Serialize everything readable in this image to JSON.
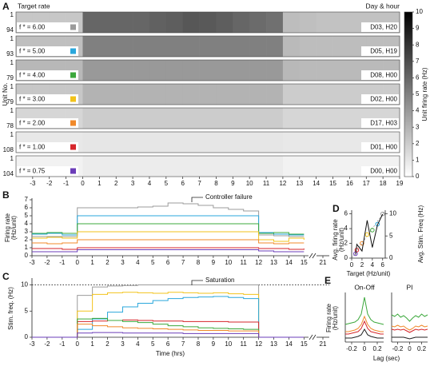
{
  "chart_data": [
    {
      "type": "heatmap",
      "panel": "A",
      "row_header": "Target rate",
      "day_header": "Day & hour",
      "ylabel": "Unit No.",
      "xlim": [
        -4,
        19
      ],
      "xticks": [
        -3,
        -2,
        -1,
        0,
        1,
        2,
        3,
        4,
        5,
        6,
        7,
        8,
        9,
        10,
        11,
        12,
        13,
        14,
        15,
        16,
        17,
        18,
        19
      ],
      "bins": [
        -4,
        -3,
        -2,
        -1,
        0,
        1,
        2,
        3,
        4,
        5,
        6,
        7,
        8,
        9,
        10,
        11,
        12,
        13,
        14,
        15,
        16,
        17,
        18,
        19
      ],
      "colormap": [
        "#ffffff",
        "#000000"
      ],
      "rows": [
        {
          "name": "f * = 6.00",
          "color": "#9b9b9b",
          "units": [
            1,
            94
          ],
          "day": "D03, H20",
          "values": [
            2.2,
            2.2,
            2.2,
            2.2,
            6,
            6,
            6,
            6,
            6.2,
            6.3,
            6.6,
            6.5,
            6.3,
            6,
            5.8,
            5.6,
            2.6,
            2.5,
            2.4,
            2.4,
            2.4,
            2.4,
            2.4
          ]
        },
        {
          "name": "f * = 5.00",
          "color": "#2aa7dc",
          "units": [
            1,
            93
          ],
          "day": "D05, H19",
          "values": [
            2.5,
            2.5,
            2.5,
            2.5,
            5,
            5,
            5,
            5,
            5,
            5,
            5,
            5,
            5,
            5,
            5,
            5,
            2.7,
            2.6,
            2.6,
            2.6,
            2.6,
            2.6,
            2.6
          ]
        },
        {
          "name": "f * = 4.00",
          "color": "#3ca83c",
          "units": [
            1,
            79
          ],
          "day": "D08, H00",
          "values": [
            2.8,
            2.8,
            2.8,
            2.8,
            4,
            4,
            4,
            4,
            4,
            4,
            4,
            4,
            4,
            4,
            4,
            4,
            2.8,
            2.7,
            2.7,
            2.7,
            2.7,
            2.7,
            2.7
          ]
        },
        {
          "name": "f * = 3.00",
          "color": "#f2c31b",
          "units": [
            1,
            79
          ],
          "day": "D02, H00",
          "values": [
            2.2,
            2.2,
            2.2,
            2.2,
            3,
            3,
            3,
            3,
            3,
            3,
            3,
            3,
            3,
            3,
            3,
            3,
            2,
            2,
            2,
            2,
            2,
            2,
            2
          ]
        },
        {
          "name": "f * = 2.00",
          "color": "#f0892a",
          "units": [
            1,
            78
          ],
          "day": "D17, H03",
          "values": [
            1.6,
            1.6,
            1.6,
            1.6,
            2,
            2,
            2,
            2,
            2,
            2,
            2,
            2,
            2,
            2,
            2,
            2,
            1.6,
            1.6,
            1.6,
            1.6,
            1.6,
            1.6,
            1.6
          ]
        },
        {
          "name": "f * = 1.00",
          "color": "#d6262b",
          "units": [
            1,
            108
          ],
          "day": "D01, H00",
          "values": [
            0.9,
            0.9,
            0.9,
            0.9,
            1,
            1,
            1,
            1,
            1,
            1,
            1,
            1,
            1,
            1,
            1,
            1,
            0.9,
            0.9,
            0.9,
            0.9,
            0.9,
            0.9,
            0.9
          ]
        },
        {
          "name": "f * = 0.75",
          "color": "#6b3db8",
          "units": [
            1,
            104
          ],
          "day": "D00, H00",
          "values": [
            0.5,
            0.5,
            0.5,
            0.5,
            0.75,
            0.75,
            0.75,
            0.75,
            0.75,
            0.75,
            0.75,
            0.75,
            0.75,
            0.75,
            0.75,
            0.75,
            0.5,
            0.5,
            0.5,
            0.5,
            0.5,
            0.5,
            0.5
          ]
        }
      ],
      "colorbar": {
        "label": "Unit firing rate (Hz)",
        "lim": [
          0,
          10
        ],
        "ticks": [
          0,
          1,
          2,
          3,
          4,
          5,
          6,
          7,
          8,
          9,
          10
        ]
      }
    },
    {
      "type": "line",
      "panel": "B",
      "step": true,
      "ylabel": [
        "Firing rate",
        "(Hz/unit)"
      ],
      "annotation": "Controller failure",
      "xlim": [
        -3,
        15.3
      ],
      "xticks": [
        -3,
        -2,
        -1,
        0,
        1,
        2,
        3,
        4,
        5,
        6,
        7,
        8,
        9,
        10,
        11,
        12,
        13,
        14,
        15
      ],
      "x2lim": [
        20.5,
        21.5
      ],
      "x2ticks": [
        21
      ],
      "ylim": [
        0,
        7
      ],
      "yticks": [
        0,
        1,
        2,
        3,
        4,
        5,
        6,
        7
      ],
      "x": [
        -3,
        -2,
        -1,
        0,
        1,
        2,
        3,
        4,
        5,
        6,
        7,
        8,
        9,
        10,
        11,
        12,
        13,
        14,
        15
      ],
      "series": [
        {
          "color": "#9b9b9b",
          "values": [
            2.4,
            2.4,
            2.4,
            6.0,
            6.0,
            6.0,
            6.0,
            6.1,
            6.2,
            6.6,
            6.5,
            6.3,
            6.0,
            5.8,
            5.6,
            2.6,
            2.5,
            2.4,
            2.4
          ]
        },
        {
          "color": "#2aa7dc",
          "values": [
            2.7,
            2.8,
            2.6,
            5,
            5,
            5,
            5,
            5,
            5,
            5,
            5,
            5,
            5,
            5,
            5,
            2.9,
            2.7,
            2.6,
            2.6
          ]
        },
        {
          "color": "#3ca83c",
          "values": [
            2.8,
            2.9,
            2.8,
            4,
            4,
            4,
            4,
            4,
            4,
            4,
            4,
            4,
            4,
            4,
            4,
            2.8,
            2.9,
            2.7,
            2.7
          ]
        },
        {
          "color": "#f2c31b",
          "values": [
            2.2,
            2.3,
            2.2,
            3,
            3,
            3,
            3,
            3,
            3,
            3,
            3,
            3,
            3,
            3,
            3,
            2.0,
            1.8,
            2.2,
            2.0
          ]
        },
        {
          "color": "#f0892a",
          "values": [
            1.6,
            1.5,
            1.6,
            2,
            2,
            2,
            2,
            2,
            2,
            2,
            2,
            2,
            2,
            2,
            2,
            1.6,
            1.5,
            1.6,
            1.6
          ]
        },
        {
          "color": "#d6262b",
          "values": [
            0.9,
            0.9,
            0.8,
            1,
            1,
            1,
            1,
            1,
            1,
            1,
            1,
            1,
            1,
            1,
            1,
            0.9,
            0.9,
            0.8,
            0.9
          ]
        },
        {
          "color": "#6b3db8",
          "values": [
            0.5,
            0.5,
            0.5,
            0.75,
            0.75,
            0.75,
            0.75,
            0.75,
            0.75,
            0.75,
            0.75,
            0.75,
            0.75,
            0.75,
            0.75,
            0.6,
            0.5,
            0.5,
            0.5
          ]
        }
      ]
    },
    {
      "type": "line",
      "panel": "C",
      "step": true,
      "ylabel": "Stim. freq. (Hz)",
      "xlabel": "Time (hrs)",
      "annotation": "Saturation",
      "hline": 10,
      "xlim": [
        -3,
        15.3
      ],
      "xticks": [
        -3,
        -2,
        -1,
        0,
        1,
        2,
        3,
        4,
        5,
        6,
        7,
        8,
        9,
        10,
        11,
        12,
        13,
        14,
        15
      ],
      "x2lim": [
        20.5,
        21.5
      ],
      "x2ticks": [
        21
      ],
      "ylim": [
        0,
        11
      ],
      "yticks": [
        0,
        5,
        10
      ],
      "x": [
        -3,
        -2,
        -1,
        0,
        1,
        2,
        3,
        4,
        5,
        6,
        7,
        8,
        9,
        10,
        11,
        12,
        13,
        14,
        15
      ],
      "series": [
        {
          "color": "#9b9b9b",
          "values": [
            0,
            0,
            0,
            8.0,
            9.6,
            9.8,
            9.9,
            10,
            10,
            10,
            10,
            10,
            10,
            10,
            10,
            0,
            0,
            0,
            0
          ]
        },
        {
          "color": "#f2c31b",
          "values": [
            0,
            0,
            0,
            5.0,
            8.2,
            8.5,
            8.6,
            8.5,
            8.4,
            8.6,
            8.5,
            8.4,
            8.5,
            8.3,
            8.2,
            0,
            0,
            0,
            0
          ]
        },
        {
          "color": "#2aa7dc",
          "values": [
            0,
            0,
            0,
            1.5,
            3.5,
            4.8,
            5.8,
            6.5,
            7.0,
            7.4,
            7.6,
            7.7,
            7.8,
            7.6,
            7.4,
            0,
            0,
            0,
            0
          ]
        },
        {
          "color": "#d6262b",
          "values": [
            0,
            0,
            0,
            3.0,
            3.1,
            3.2,
            3.3,
            3.2,
            3.1,
            3.1,
            3.0,
            3.0,
            3.0,
            2.9,
            2.9,
            0,
            0,
            0,
            0
          ]
        },
        {
          "color": "#3ca83c",
          "values": [
            0,
            0,
            0,
            3.5,
            3.6,
            3.2,
            3.0,
            2.8,
            2.5,
            2.2,
            2.0,
            1.8,
            1.7,
            1.6,
            1.5,
            0,
            0,
            0,
            0
          ]
        },
        {
          "color": "#f0892a",
          "values": [
            0,
            0,
            0,
            2.5,
            2.2,
            2.0,
            1.8,
            1.7,
            1.6,
            1.5,
            1.4,
            1.3,
            1.3,
            1.2,
            1.2,
            0,
            0,
            0,
            0
          ]
        },
        {
          "color": "#6b3db8",
          "values": [
            0,
            0,
            0,
            0.8,
            0.9,
            0.9,
            0.8,
            0.8,
            0.8,
            0.8,
            0.7,
            0.7,
            0.7,
            0.7,
            0.7,
            0,
            0,
            0,
            0
          ]
        }
      ]
    },
    {
      "type": "scatter",
      "panel": "D",
      "xlabel": "Target  (Hz/unit)",
      "ylabel": [
        "Avg. firing rate",
        "(Hz/unit)"
      ],
      "y2label": "Avg. Stim. Freq (Hz)",
      "diagonal": true,
      "xlim": [
        0,
        6.5
      ],
      "xticks": [
        0,
        2,
        4,
        6
      ],
      "ylim": [
        0,
        6.5
      ],
      "yticks": [
        0,
        2,
        4,
        6
      ],
      "y2lim": [
        0,
        10.8
      ],
      "y2ticks": [
        0,
        5,
        10
      ],
      "x": [
        0.75,
        1,
        2,
        3,
        4,
        5,
        6
      ],
      "series": [
        {
          "colors": [
            "#6b3db8",
            "#d6262b",
            "#f0892a",
            "#f2c31b",
            "#3ca83c",
            "#2aa7dc",
            "#9b9b9b"
          ],
          "values": [
            0.6,
            1.1,
            2.0,
            3.2,
            3.8,
            4.6,
            6.0
          ]
        },
        {
          "color": "#111111",
          "axis": "y2",
          "values": [
            0.8,
            3.1,
            1.6,
            8.5,
            2.4,
            7.5,
            9.9
          ]
        }
      ]
    },
    {
      "type": "line",
      "panel": "E",
      "ylabel": [
        "Firing rate",
        "(Hz/unit)"
      ],
      "xlabel": "Lag (sec)",
      "xlim": [
        -0.3,
        0.3
      ],
      "xticks": [
        -0.2,
        0,
        0.2
      ],
      "ylim": [
        0,
        6
      ],
      "x": [
        -0.3,
        -0.25,
        -0.2,
        -0.15,
        -0.1,
        -0.05,
        0,
        0.05,
        0.1,
        0.15,
        0.2,
        0.25,
        0.3
      ],
      "panels": [
        {
          "title": "On-Off",
          "series": [
            {
              "color": "#3ca83c",
              "values": [
                2.2,
                2.3,
                2.4,
                2.5,
                2.8,
                3.5,
                5.6,
                3.5,
                2.8,
                2.5,
                2.4,
                2.3,
                2.2
              ]
            },
            {
              "color": "#f0892a",
              "values": [
                1.3,
                1.3,
                1.4,
                1.5,
                1.7,
                2.2,
                3.2,
                2.2,
                1.7,
                1.5,
                1.4,
                1.3,
                1.3
              ]
            },
            {
              "color": "#d6262b",
              "values": [
                1.0,
                1.0,
                1.1,
                1.2,
                1.3,
                1.7,
                2.6,
                1.7,
                1.3,
                1.2,
                1.1,
                1.0,
                1.0
              ]
            },
            {
              "color": "#222222",
              "values": [
                0.5,
                0.5,
                0.5,
                0.6,
                0.7,
                0.9,
                1.6,
                0.9,
                0.7,
                0.6,
                0.5,
                0.5,
                0.5
              ]
            }
          ]
        },
        {
          "title": "PI",
          "series": [
            {
              "color": "#3ca83c",
              "values": [
                3.4,
                3.2,
                3.5,
                3.1,
                3.3,
                3.0,
                2.6,
                3.0,
                3.3,
                3.1,
                3.5,
                3.2,
                3.4
              ]
            },
            {
              "color": "#f0892a",
              "values": [
                2.0,
                1.9,
                2.1,
                1.9,
                2.0,
                1.7,
                1.5,
                1.7,
                2.0,
                1.9,
                2.1,
                1.9,
                2.0
              ]
            },
            {
              "color": "#d6262b",
              "values": [
                1.6,
                1.5,
                1.6,
                1.5,
                1.6,
                1.4,
                1.2,
                1.4,
                1.6,
                1.5,
                1.6,
                1.5,
                1.6
              ]
            },
            {
              "color": "#222222",
              "values": [
                0.6,
                0.6,
                0.6,
                0.6,
                0.6,
                0.5,
                0.4,
                0.5,
                0.6,
                0.6,
                0.6,
                0.6,
                0.6
              ]
            }
          ]
        }
      ]
    }
  ]
}
